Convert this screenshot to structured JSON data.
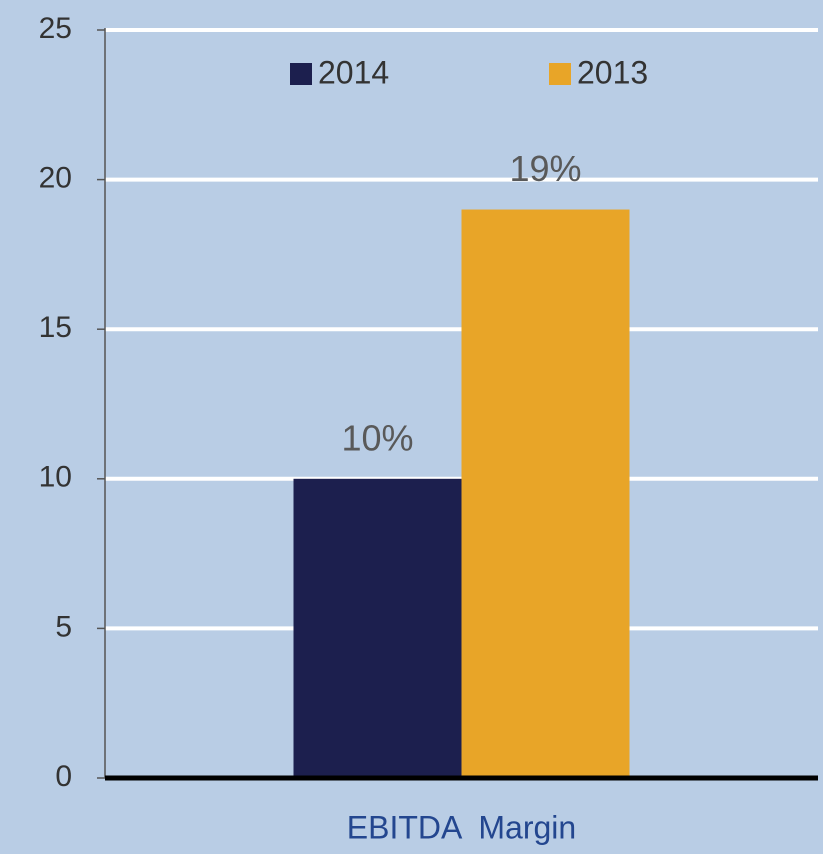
{
  "chart_data": {
    "type": "bar",
    "categories": [
      "EBITDA  Margin"
    ],
    "series": [
      {
        "name": "2014",
        "color": "#1c1f4e",
        "values": [
          10
        ],
        "value_labels": [
          "10%"
        ]
      },
      {
        "name": "2013",
        "color": "#e8a528",
        "values": [
          19
        ],
        "value_labels": [
          "19%"
        ]
      }
    ],
    "ylim": [
      0,
      25
    ],
    "yticks": [
      0,
      5,
      10,
      15,
      20,
      25
    ],
    "grid": true,
    "legend": "top"
  }
}
